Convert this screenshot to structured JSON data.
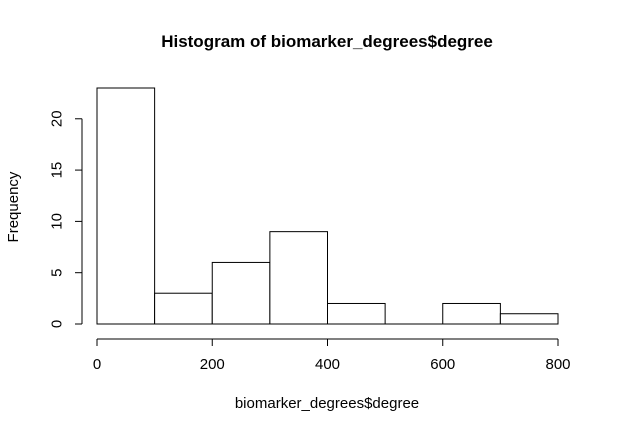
{
  "chart_data": {
    "type": "bar",
    "title": "Histogram of biomarker_degrees$degree",
    "xlabel": "biomarker_degrees$degree",
    "ylabel": "Frequency",
    "bins": [
      {
        "start": 0,
        "end": 100,
        "count": 23
      },
      {
        "start": 100,
        "end": 200,
        "count": 3
      },
      {
        "start": 200,
        "end": 300,
        "count": 6
      },
      {
        "start": 300,
        "end": 400,
        "count": 9
      },
      {
        "start": 400,
        "end": 500,
        "count": 2
      },
      {
        "start": 500,
        "end": 600,
        "count": 0
      },
      {
        "start": 600,
        "end": 700,
        "count": 2
      },
      {
        "start": 700,
        "end": 800,
        "count": 1
      }
    ],
    "x_ticks": [
      0,
      200,
      400,
      600,
      800
    ],
    "y_ticks": [
      0,
      5,
      10,
      15,
      20
    ],
    "xlim": [
      0,
      800
    ],
    "ylim": [
      0,
      23
    ],
    "grid": false,
    "legend": "none"
  }
}
